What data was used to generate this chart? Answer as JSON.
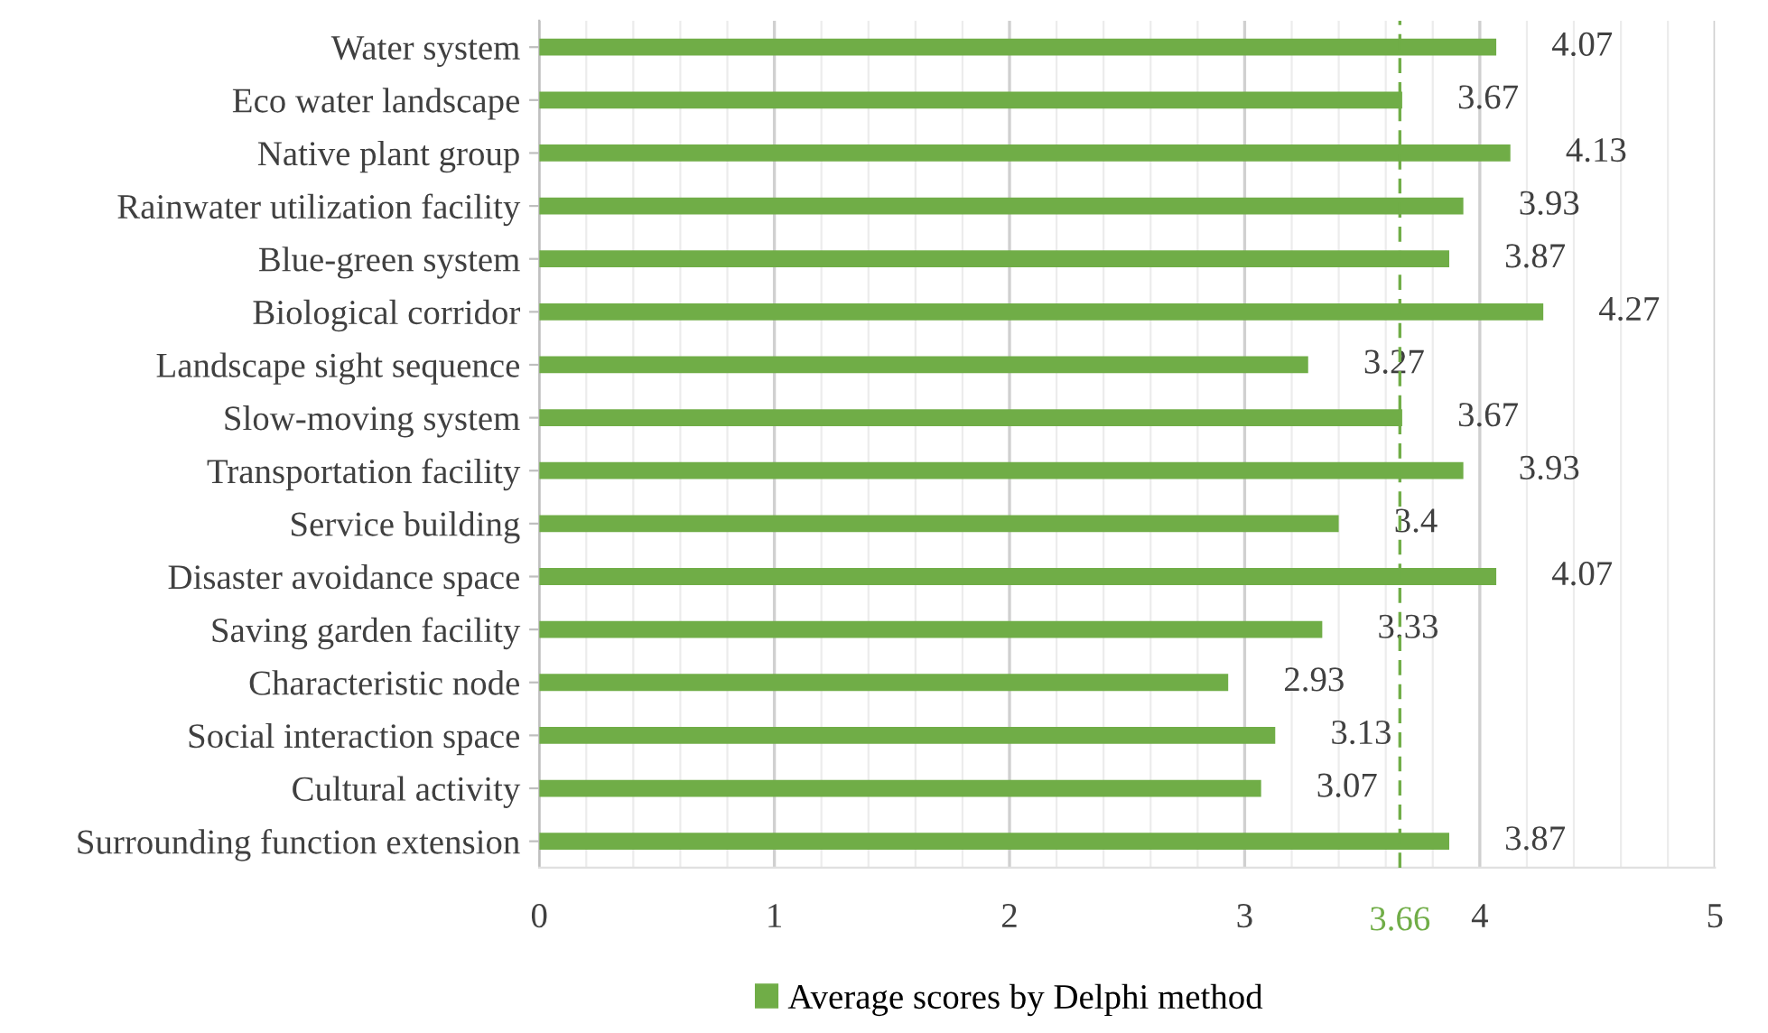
{
  "chart_data": {
    "type": "bar",
    "orientation": "horizontal",
    "categories": [
      "Water system",
      "Eco water landscape",
      "Native plant group",
      "Rainwater utilization facility",
      "Blue-green system",
      "Biological corridor",
      "Landscape sight sequence",
      "Slow-moving system",
      "Transportation facility",
      "Service building",
      "Disaster avoidance space",
      "Saving garden facility",
      "Characteristic node",
      "Social interaction space",
      "Cultural activity",
      "Surrounding function extension"
    ],
    "series": [
      {
        "name": "Average scores by Delphi method",
        "color": "#70ad47",
        "values": [
          4.07,
          3.67,
          4.13,
          3.93,
          3.87,
          4.27,
          3.27,
          3.67,
          3.93,
          3.4,
          4.07,
          3.33,
          2.93,
          3.13,
          3.07,
          3.87
        ]
      }
    ],
    "data_labels": true,
    "xlim": [
      0,
      5
    ],
    "xticks": [
      0,
      {
        "value": 0.2,
        "label": null
      },
      {
        "value": 0.4,
        "label": null
      },
      {
        "value": 0.6,
        "label": null
      },
      {
        "value": 0.8,
        "label": null
      },
      1,
      {
        "value": 1.2,
        "label": null
      },
      {
        "value": 1.4,
        "label": null
      },
      {
        "value": 1.6,
        "label": null
      },
      {
        "value": 1.8,
        "label": null
      },
      2,
      {
        "value": 2.2,
        "label": null
      },
      {
        "value": 2.4,
        "label": null
      },
      {
        "value": 2.6,
        "label": null
      },
      {
        "value": 2.8,
        "label": null
      },
      3,
      {
        "value": 3.2,
        "label": null
      },
      {
        "value": 3.4,
        "label": null
      },
      {
        "value": 3.6,
        "label": null
      },
      {
        "value": 3.8,
        "label": null
      },
      4,
      {
        "value": 4.2,
        "label": null
      },
      {
        "value": 4.4,
        "label": null
      },
      {
        "value": 4.6,
        "label": null
      },
      {
        "value": 4.8,
        "label": null
      },
      5
    ],
    "grid": "x",
    "ref_lines": [
      {
        "axis": "x",
        "value": 3.66,
        "label": "3.66",
        "color": "#70ad47",
        "line_style": "dashed"
      }
    ],
    "legend": "bottom"
  }
}
